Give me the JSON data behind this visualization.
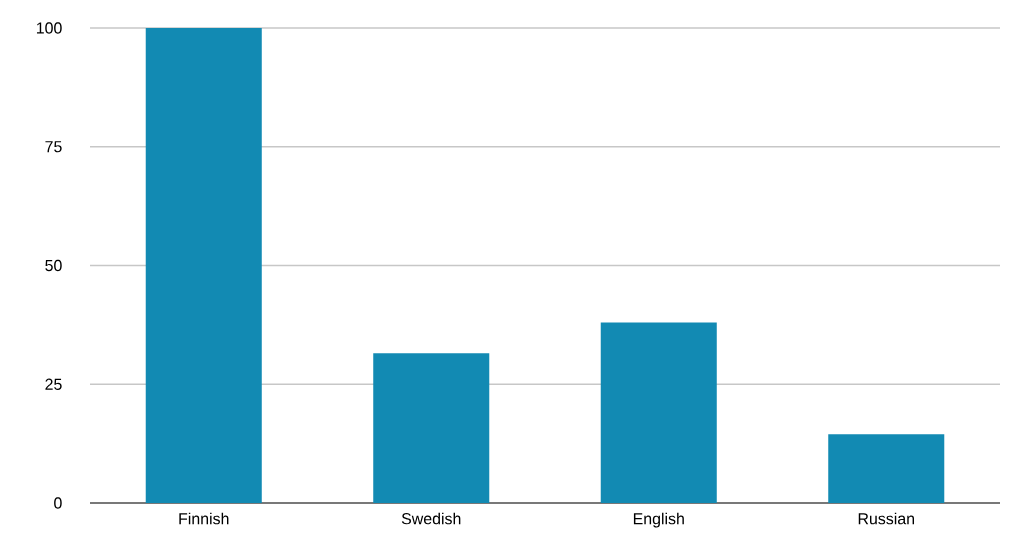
{
  "chart_data": {
    "type": "bar",
    "categories": [
      "Finnish",
      "Swedish",
      "English",
      "Russian"
    ],
    "values": [
      100,
      31.5,
      38,
      14.5
    ],
    "color": "#128ab3",
    "ylim": [
      0,
      100
    ],
    "yticks": [
      0,
      25,
      50,
      75,
      100
    ],
    "grid": "y"
  }
}
